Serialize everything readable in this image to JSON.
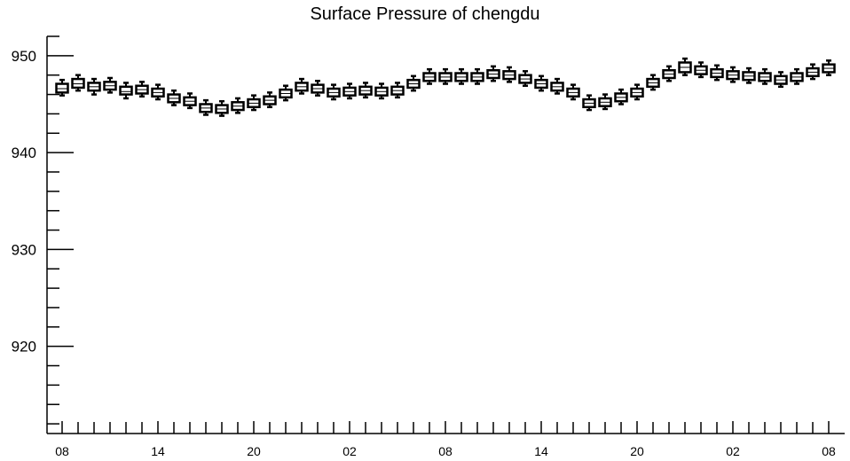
{
  "chart_data": {
    "type": "boxplot",
    "title": "Surface Pressure of chengdu",
    "xlabel": "",
    "ylabel": "",
    "ylim": [
      911,
      952
    ],
    "yticks": [
      920,
      930,
      940,
      950
    ],
    "grid": false,
    "legend": "none",
    "x_tick_labels": [
      "08",
      "14",
      "20",
      "02",
      "08",
      "14",
      "20",
      "02",
      "08"
    ],
    "x_tick_label_indices": [
      0,
      6,
      12,
      18,
      24,
      30,
      36,
      42,
      48
    ],
    "boxes": [
      {
        "x": 0,
        "min": 945.9,
        "q1": 946.2,
        "median": 946.6,
        "q3": 947.1,
        "max": 947.5
      },
      {
        "x": 1,
        "min": 946.4,
        "q1": 946.7,
        "median": 947.1,
        "q3": 947.6,
        "max": 948.0
      },
      {
        "x": 2,
        "min": 946.0,
        "q1": 946.4,
        "median": 946.8,
        "q3": 947.2,
        "max": 947.6
      },
      {
        "x": 3,
        "min": 946.2,
        "q1": 946.5,
        "median": 946.9,
        "q3": 947.3,
        "max": 947.7
      },
      {
        "x": 4,
        "min": 945.6,
        "q1": 946.0,
        "median": 946.3,
        "q3": 946.8,
        "max": 947.2
      },
      {
        "x": 5,
        "min": 945.8,
        "q1": 946.1,
        "median": 946.5,
        "q3": 946.9,
        "max": 947.3
      },
      {
        "x": 6,
        "min": 945.5,
        "q1": 945.8,
        "median": 946.2,
        "q3": 946.6,
        "max": 947.0
      },
      {
        "x": 7,
        "min": 944.9,
        "q1": 945.2,
        "median": 945.6,
        "q3": 946.0,
        "max": 946.4
      },
      {
        "x": 8,
        "min": 944.6,
        "q1": 944.9,
        "median": 945.3,
        "q3": 945.7,
        "max": 946.1
      },
      {
        "x": 9,
        "min": 943.9,
        "q1": 944.2,
        "median": 944.6,
        "q3": 945.0,
        "max": 945.4
      },
      {
        "x": 10,
        "min": 943.8,
        "q1": 944.1,
        "median": 944.5,
        "q3": 944.9,
        "max": 945.3
      },
      {
        "x": 11,
        "min": 944.1,
        "q1": 944.4,
        "median": 944.8,
        "q3": 945.2,
        "max": 945.6
      },
      {
        "x": 12,
        "min": 944.4,
        "q1": 944.7,
        "median": 945.1,
        "q3": 945.5,
        "max": 945.9
      },
      {
        "x": 13,
        "min": 944.7,
        "q1": 945.0,
        "median": 945.4,
        "q3": 945.8,
        "max": 946.2
      },
      {
        "x": 14,
        "min": 945.4,
        "q1": 945.7,
        "median": 946.1,
        "q3": 946.5,
        "max": 946.9
      },
      {
        "x": 15,
        "min": 946.1,
        "q1": 946.4,
        "median": 946.8,
        "q3": 947.2,
        "max": 947.6
      },
      {
        "x": 16,
        "min": 945.9,
        "q1": 946.2,
        "median": 946.6,
        "q3": 947.0,
        "max": 947.4
      },
      {
        "x": 17,
        "min": 945.5,
        "q1": 945.8,
        "median": 946.2,
        "q3": 946.6,
        "max": 947.0
      },
      {
        "x": 18,
        "min": 945.6,
        "q1": 945.9,
        "median": 946.3,
        "q3": 946.7,
        "max": 947.1
      },
      {
        "x": 19,
        "min": 945.7,
        "q1": 946.0,
        "median": 946.4,
        "q3": 946.8,
        "max": 947.2
      },
      {
        "x": 20,
        "min": 945.6,
        "q1": 945.9,
        "median": 946.3,
        "q3": 946.7,
        "max": 947.1
      },
      {
        "x": 21,
        "min": 945.7,
        "q1": 946.0,
        "median": 946.4,
        "q3": 946.8,
        "max": 947.2
      },
      {
        "x": 22,
        "min": 946.4,
        "q1": 946.7,
        "median": 947.1,
        "q3": 947.5,
        "max": 947.9
      },
      {
        "x": 23,
        "min": 947.1,
        "q1": 947.4,
        "median": 947.8,
        "q3": 948.2,
        "max": 948.6
      },
      {
        "x": 24,
        "min": 947.1,
        "q1": 947.4,
        "median": 947.8,
        "q3": 948.2,
        "max": 948.6
      },
      {
        "x": 25,
        "min": 947.1,
        "q1": 947.4,
        "median": 947.8,
        "q3": 948.2,
        "max": 948.6
      },
      {
        "x": 26,
        "min": 947.1,
        "q1": 947.4,
        "median": 947.8,
        "q3": 948.2,
        "max": 948.6
      },
      {
        "x": 27,
        "min": 947.4,
        "q1": 947.7,
        "median": 948.1,
        "q3": 948.5,
        "max": 948.9
      },
      {
        "x": 28,
        "min": 947.3,
        "q1": 947.6,
        "median": 948.0,
        "q3": 948.4,
        "max": 948.8
      },
      {
        "x": 29,
        "min": 946.9,
        "q1": 947.2,
        "median": 947.6,
        "q3": 948.0,
        "max": 948.4
      },
      {
        "x": 30,
        "min": 946.4,
        "q1": 946.7,
        "median": 947.1,
        "q3": 947.5,
        "max": 947.9
      },
      {
        "x": 31,
        "min": 946.1,
        "q1": 946.4,
        "median": 946.8,
        "q3": 947.2,
        "max": 947.6
      },
      {
        "x": 32,
        "min": 945.5,
        "q1": 945.8,
        "median": 946.2,
        "q3": 946.6,
        "max": 947.0
      },
      {
        "x": 33,
        "min": 944.4,
        "q1": 944.7,
        "median": 945.1,
        "q3": 945.5,
        "max": 945.9
      },
      {
        "x": 34,
        "min": 944.5,
        "q1": 944.8,
        "median": 945.2,
        "q3": 945.6,
        "max": 946.0
      },
      {
        "x": 35,
        "min": 945.0,
        "q1": 945.3,
        "median": 945.7,
        "q3": 946.1,
        "max": 946.5
      },
      {
        "x": 36,
        "min": 945.5,
        "q1": 945.8,
        "median": 946.2,
        "q3": 946.6,
        "max": 947.0
      },
      {
        "x": 37,
        "min": 946.5,
        "q1": 946.8,
        "median": 947.2,
        "q3": 947.6,
        "max": 948.0
      },
      {
        "x": 38,
        "min": 947.4,
        "q1": 947.7,
        "median": 948.1,
        "q3": 948.5,
        "max": 948.9
      },
      {
        "x": 39,
        "min": 948.0,
        "q1": 948.3,
        "median": 948.8,
        "q3": 949.3,
        "max": 949.7
      },
      {
        "x": 40,
        "min": 947.8,
        "q1": 948.1,
        "median": 948.5,
        "q3": 948.9,
        "max": 949.3
      },
      {
        "x": 41,
        "min": 947.5,
        "q1": 947.8,
        "median": 948.2,
        "q3": 948.6,
        "max": 949.0
      },
      {
        "x": 42,
        "min": 947.3,
        "q1": 947.6,
        "median": 948.0,
        "q3": 948.4,
        "max": 948.8
      },
      {
        "x": 43,
        "min": 947.2,
        "q1": 947.5,
        "median": 947.9,
        "q3": 948.3,
        "max": 948.7
      },
      {
        "x": 44,
        "min": 947.1,
        "q1": 947.4,
        "median": 947.8,
        "q3": 948.2,
        "max": 948.6
      },
      {
        "x": 45,
        "min": 946.8,
        "q1": 947.1,
        "median": 947.5,
        "q3": 947.9,
        "max": 948.3
      },
      {
        "x": 46,
        "min": 947.1,
        "q1": 947.4,
        "median": 947.8,
        "q3": 948.2,
        "max": 948.6
      },
      {
        "x": 47,
        "min": 947.6,
        "q1": 947.9,
        "median": 948.3,
        "q3": 948.7,
        "max": 949.1
      },
      {
        "x": 48,
        "min": 948.0,
        "q1": 948.3,
        "median": 948.7,
        "q3": 949.1,
        "max": 949.5
      }
    ],
    "colors": {
      "box_fill": "#ffffff",
      "stroke": "#000000",
      "background": "#ffffff"
    }
  }
}
